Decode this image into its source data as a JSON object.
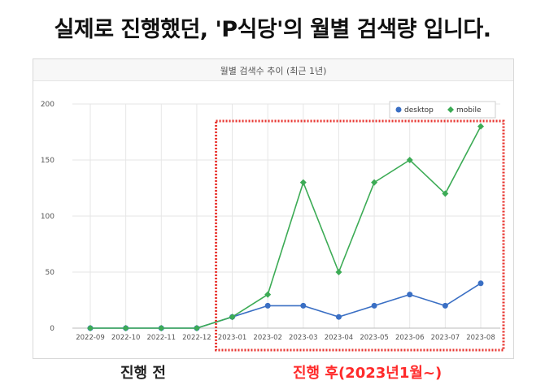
{
  "headline": "실제로 진행했던, 'P식당'의 월별 검색량 입니다.",
  "captions": {
    "before": "진행 전",
    "after": "진행 후(2023년1월~)"
  },
  "colors": {
    "desktop": "#3a6fc4",
    "mobile": "#3cab55",
    "highlight_box": "#e8342f",
    "grid": "#e6e6e6"
  },
  "chart_data": {
    "type": "line",
    "title": "월별 검색수 추이 (최근 1년)",
    "categories": [
      "2022-09",
      "2022-10",
      "2022-11",
      "2022-12",
      "2023-01",
      "2023-02",
      "2023-03",
      "2023-04",
      "2023-05",
      "2023-06",
      "2023-07",
      "2023-08"
    ],
    "yticks": [
      0,
      50,
      100,
      150,
      200
    ],
    "ylim": [
      0,
      200
    ],
    "grid": true,
    "legend": "top-right",
    "series": [
      {
        "name": "desktop",
        "values": [
          0,
          0,
          0,
          0,
          10,
          20,
          20,
          10,
          20,
          30,
          20,
          40
        ]
      },
      {
        "name": "mobile",
        "values": [
          0,
          0,
          0,
          0,
          10,
          30,
          130,
          50,
          130,
          150,
          120,
          180
        ]
      }
    ],
    "highlight": {
      "from": "2023-01",
      "to": "2023-08"
    }
  }
}
